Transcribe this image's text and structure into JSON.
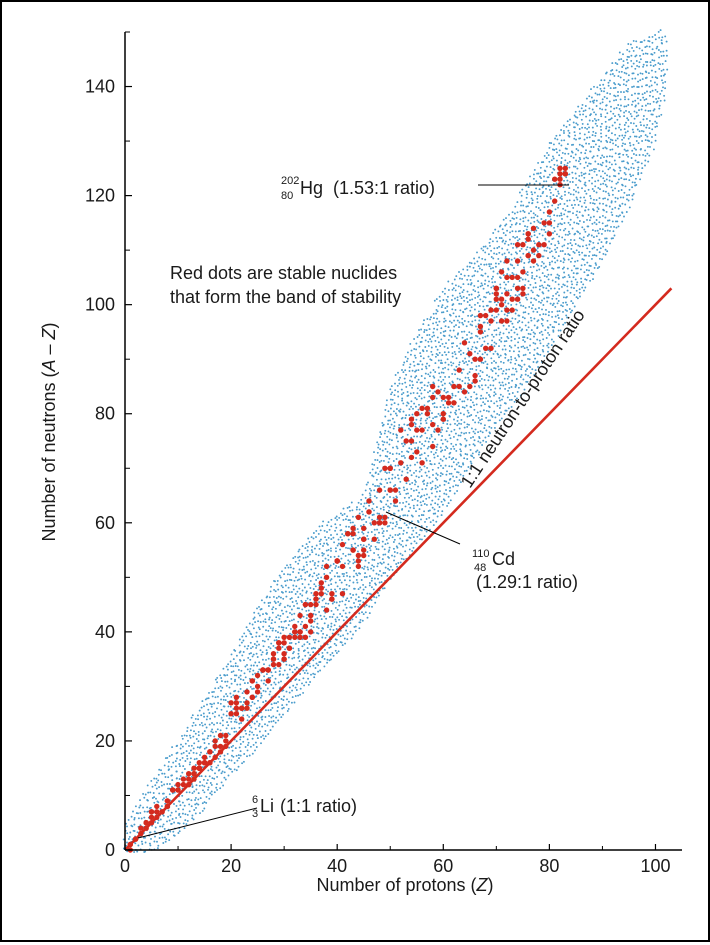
{
  "chart_data": {
    "type": "scatter",
    "title": "",
    "xlabel": {
      "pre": "Number of protons (",
      "var": "Z",
      "post": ")"
    },
    "ylabel": {
      "pre": "Number of neutrons (",
      "var": "A",
      "mid": " – ",
      "var2": "Z",
      "post": ")"
    },
    "xlim": [
      0,
      105
    ],
    "ylim": [
      0,
      150
    ],
    "x_ticks": [
      0,
      20,
      40,
      60,
      80,
      100
    ],
    "y_ticks": [
      0,
      20,
      40,
      60,
      80,
      100,
      120,
      140
    ],
    "grid": false,
    "legend": "none",
    "colors": {
      "stable": "#d42a1e",
      "unstable": "#4a9ccc",
      "ratio_line": "#d42a1e",
      "axis": "#000000"
    },
    "stable_band": [
      {
        "z": 1,
        "nmin": 0,
        "nmax": 1
      },
      {
        "z": 3,
        "nmin": 3,
        "nmax": 4
      },
      {
        "z": 5,
        "nmin": 5,
        "nmax": 7
      },
      {
        "z": 8,
        "nmin": 8,
        "nmax": 10
      },
      {
        "z": 10,
        "nmin": 10,
        "nmax": 12
      },
      {
        "z": 12,
        "nmin": 12,
        "nmax": 14
      },
      {
        "z": 15,
        "nmin": 15,
        "nmax": 18
      },
      {
        "z": 18,
        "nmin": 18,
        "nmax": 22
      },
      {
        "z": 20,
        "nmin": 20,
        "nmax": 28
      },
      {
        "z": 25,
        "nmin": 28,
        "nmax": 32
      },
      {
        "z": 30,
        "nmin": 34,
        "nmax": 40
      },
      {
        "z": 35,
        "nmin": 40,
        "nmax": 46
      },
      {
        "z": 40,
        "nmin": 46,
        "nmax": 56
      },
      {
        "z": 45,
        "nmin": 52,
        "nmax": 62
      },
      {
        "z": 50,
        "nmin": 62,
        "nmax": 74
      },
      {
        "z": 55,
        "nmin": 70,
        "nmax": 82
      },
      {
        "z": 60,
        "nmin": 76,
        "nmax": 90
      },
      {
        "z": 65,
        "nmin": 84,
        "nmax": 96
      },
      {
        "z": 70,
        "nmin": 92,
        "nmax": 106
      },
      {
        "z": 75,
        "nmin": 101,
        "nmax": 112
      },
      {
        "z": 80,
        "nmin": 112,
        "nmax": 124
      },
      {
        "z": 83,
        "nmin": 122,
        "nmax": 126
      }
    ],
    "unstable_band": [
      {
        "z": 0,
        "lo": 0,
        "hi": 5
      },
      {
        "z": 5,
        "lo": 0,
        "hi": 13
      },
      {
        "z": 10,
        "lo": 3,
        "hi": 20
      },
      {
        "z": 15,
        "lo": 8,
        "hi": 28
      },
      {
        "z": 20,
        "lo": 14,
        "hi": 36
      },
      {
        "z": 25,
        "lo": 19,
        "hi": 45
      },
      {
        "z": 30,
        "lo": 25,
        "hi": 52
      },
      {
        "z": 35,
        "lo": 31,
        "hi": 58
      },
      {
        "z": 40,
        "lo": 36,
        "hi": 62
      },
      {
        "z": 45,
        "lo": 42,
        "hi": 65
      },
      {
        "z": 50,
        "lo": 50,
        "hi": 85
      },
      {
        "z": 55,
        "lo": 56,
        "hi": 95
      },
      {
        "z": 60,
        "lo": 62,
        "hi": 103
      },
      {
        "z": 65,
        "lo": 70,
        "hi": 108
      },
      {
        "z": 70,
        "lo": 78,
        "hi": 114
      },
      {
        "z": 75,
        "lo": 84,
        "hi": 121
      },
      {
        "z": 80,
        "lo": 92,
        "hi": 130
      },
      {
        "z": 85,
        "lo": 100,
        "hi": 136
      },
      {
        "z": 90,
        "lo": 108,
        "hi": 142
      },
      {
        "z": 95,
        "lo": 118,
        "hi": 148
      },
      {
        "z": 100,
        "lo": 130,
        "hi": 150
      },
      {
        "z": 102,
        "lo": 140,
        "hi": 150
      }
    ],
    "ratio_line": {
      "label": "1:1 neutron-to-proton ratio",
      "from": [
        0,
        0
      ],
      "to": [
        103,
        103
      ]
    },
    "annotations": [
      {
        "id": "hg",
        "mass": "202",
        "atomic": "80",
        "symbol": "Hg",
        "ratio": "(1.53:1 ratio)",
        "point": [
          80,
          122
        ]
      },
      {
        "id": "cd",
        "mass": "110",
        "atomic": "48",
        "symbol": "Cd",
        "ratio": "(1.29:1 ratio)",
        "point": [
          48,
          62
        ]
      },
      {
        "id": "li",
        "mass": "6",
        "atomic": "3",
        "symbol": "Li",
        "ratio": "(1:1 ratio)",
        "point": [
          3,
          3
        ]
      }
    ],
    "note_lines": [
      "Red dots are stable nuclides",
      "that form the band of stability"
    ]
  }
}
